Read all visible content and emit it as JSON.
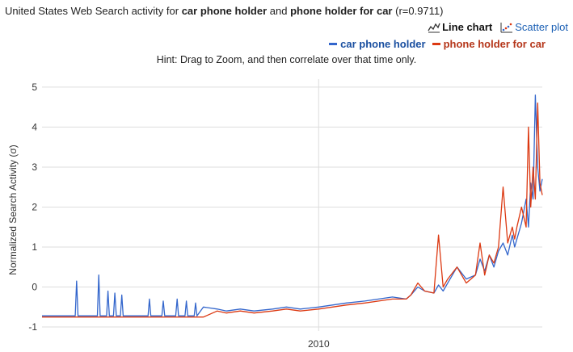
{
  "header": {
    "title_prefix": "United States Web Search activity for ",
    "term_a": "car phone holder",
    "title_and": " and ",
    "term_b": "phone holder for car",
    "title_suffix": " (r=0.9711)"
  },
  "view_toggle": {
    "line_label": "Line chart",
    "scatter_label": "Scatter plot"
  },
  "hint": "Hint: Drag to Zoom, and then correlate over that time only.",
  "colors": {
    "series_a": "#3366cc",
    "series_b": "#dc3912",
    "grid": "#dddddd"
  },
  "chart_data": {
    "type": "line",
    "ylabel": "Normalized Search Activity (σ)",
    "ylim": [
      -1.1,
      5.2
    ],
    "y_ticks": [
      -1,
      0,
      1,
      2,
      3,
      4,
      5
    ],
    "x_range": [
      2004.0,
      2014.85
    ],
    "x_ticks": [
      {
        "value": 2010,
        "label": "2010"
      }
    ],
    "legend_position": "top-right",
    "series": [
      {
        "name": "car phone holder",
        "color": "#3366cc",
        "x": [
          2004.0,
          2004.5,
          2004.72,
          2004.75,
          2004.78,
          2005.0,
          2005.2,
          2005.23,
          2005.26,
          2005.4,
          2005.43,
          2005.46,
          2005.55,
          2005.58,
          2005.61,
          2005.7,
          2005.73,
          2005.76,
          2006.0,
          2006.3,
          2006.33,
          2006.36,
          2006.6,
          2006.63,
          2006.66,
          2006.9,
          2006.93,
          2006.96,
          2007.1,
          2007.13,
          2007.16,
          2007.3,
          2007.33,
          2007.36,
          2007.5,
          2007.8,
          2008.0,
          2008.3,
          2008.6,
          2009.0,
          2009.3,
          2009.6,
          2010.0,
          2010.3,
          2010.6,
          2011.0,
          2011.3,
          2011.6,
          2011.9,
          2012.0,
          2012.15,
          2012.3,
          2012.5,
          2012.6,
          2012.7,
          2012.8,
          2013.0,
          2013.2,
          2013.4,
          2013.5,
          2013.6,
          2013.7,
          2013.8,
          2013.9,
          2014.0,
          2014.1,
          2014.2,
          2014.25,
          2014.3,
          2014.4,
          2014.5,
          2014.55,
          2014.6,
          2014.65,
          2014.7,
          2014.75,
          2014.8,
          2014.85
        ],
        "y": [
          -0.72,
          -0.72,
          -0.72,
          0.15,
          -0.72,
          -0.72,
          -0.72,
          0.3,
          -0.72,
          -0.72,
          -0.1,
          -0.72,
          -0.72,
          -0.15,
          -0.72,
          -0.72,
          -0.2,
          -0.72,
          -0.72,
          -0.72,
          -0.3,
          -0.72,
          -0.72,
          -0.35,
          -0.72,
          -0.72,
          -0.3,
          -0.72,
          -0.72,
          -0.35,
          -0.72,
          -0.72,
          -0.4,
          -0.72,
          -0.5,
          -0.55,
          -0.6,
          -0.55,
          -0.6,
          -0.55,
          -0.5,
          -0.55,
          -0.5,
          -0.45,
          -0.4,
          -0.35,
          -0.3,
          -0.25,
          -0.3,
          -0.2,
          0.0,
          -0.1,
          -0.15,
          0.05,
          -0.1,
          0.1,
          0.5,
          0.2,
          0.3,
          0.7,
          0.4,
          0.8,
          0.5,
          0.9,
          1.1,
          0.8,
          1.3,
          1.0,
          1.2,
          1.6,
          2.2,
          1.5,
          2.6,
          2.2,
          4.8,
          3.0,
          2.4,
          2.7
        ]
      },
      {
        "name": "phone holder for car",
        "color": "#dc3912",
        "x": [
          2004.0,
          2004.5,
          2005.0,
          2005.5,
          2006.0,
          2006.5,
          2007.0,
          2007.5,
          2007.8,
          2008.0,
          2008.3,
          2008.6,
          2009.0,
          2009.3,
          2009.6,
          2010.0,
          2010.3,
          2010.6,
          2011.0,
          2011.3,
          2011.6,
          2011.9,
          2012.0,
          2012.15,
          2012.3,
          2012.5,
          2012.6,
          2012.7,
          2012.8,
          2013.0,
          2013.2,
          2013.4,
          2013.5,
          2013.6,
          2013.7,
          2013.8,
          2013.9,
          2014.0,
          2014.1,
          2014.2,
          2014.25,
          2014.3,
          2014.4,
          2014.5,
          2014.55,
          2014.6,
          2014.65,
          2014.7,
          2014.75,
          2014.8,
          2014.85
        ],
        "y": [
          -0.75,
          -0.75,
          -0.75,
          -0.75,
          -0.75,
          -0.75,
          -0.75,
          -0.75,
          -0.6,
          -0.65,
          -0.6,
          -0.65,
          -0.6,
          -0.55,
          -0.6,
          -0.55,
          -0.5,
          -0.45,
          -0.4,
          -0.35,
          -0.3,
          -0.3,
          -0.2,
          0.1,
          -0.1,
          -0.15,
          1.3,
          0.0,
          0.2,
          0.5,
          0.1,
          0.3,
          1.1,
          0.3,
          0.8,
          0.6,
          1.0,
          2.5,
          1.1,
          1.5,
          1.2,
          1.5,
          2.0,
          1.5,
          4.0,
          2.0,
          3.0,
          2.2,
          4.6,
          2.6,
          2.3
        ]
      }
    ]
  }
}
